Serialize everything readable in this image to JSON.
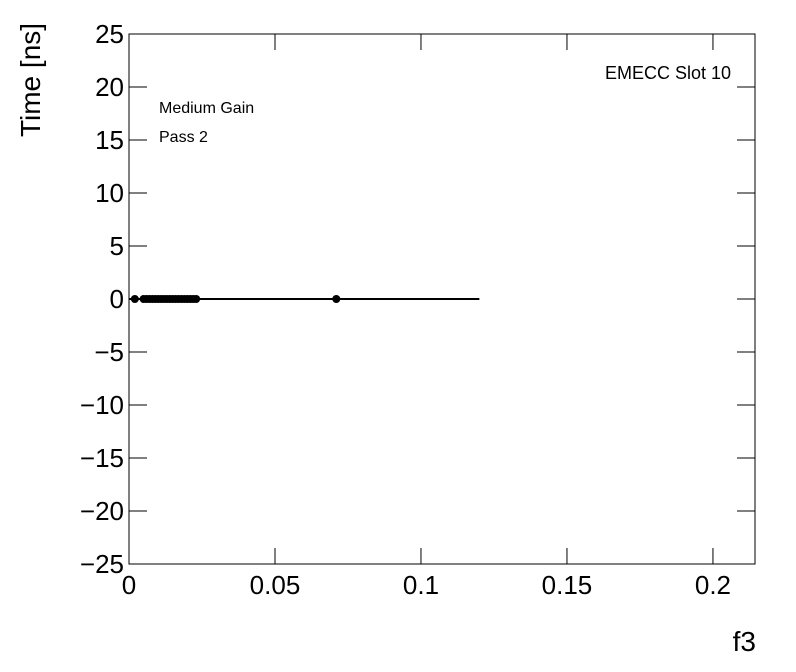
{
  "chart_data": {
    "type": "scatter",
    "x_label": "f3",
    "y_label": "Time [ns]",
    "annotations": [
      "Medium Gain",
      "Pass 2",
      "EMECC Slot 10"
    ],
    "xlim": [
      0,
      0.2144
    ],
    "ylim": [
      -25,
      25
    ],
    "xticks": [
      0,
      0.05,
      0.1,
      0.15,
      0.2
    ],
    "yticks": [
      {
        "value": -25,
        "label": "−25"
      },
      {
        "value": -20,
        "label": "−20"
      },
      {
        "value": -15,
        "label": "−15"
      },
      {
        "value": -10,
        "label": "−10"
      },
      {
        "value": -5,
        "label": "−5"
      },
      0,
      5,
      10,
      15,
      20,
      25
    ],
    "series": [
      {
        "type": "scatter",
        "color": "#000000",
        "x": [
          0.002,
          0.005,
          0.006,
          0.007,
          0.008,
          0.009,
          0.01,
          0.011,
          0.012,
          0.013,
          0.014,
          0.015,
          0.016,
          0.017,
          0.018,
          0.019,
          0.02,
          0.021,
          0.022,
          0.023,
          0.071
        ],
        "values": [
          0,
          0,
          0,
          0,
          0,
          0,
          0,
          0,
          0,
          0,
          0,
          0,
          0,
          0,
          0,
          0,
          0,
          0,
          0,
          0,
          0
        ]
      },
      {
        "type": "line",
        "color": "#000000",
        "x": [
          0,
          0.12
        ],
        "values": [
          0,
          0
        ]
      }
    ]
  }
}
